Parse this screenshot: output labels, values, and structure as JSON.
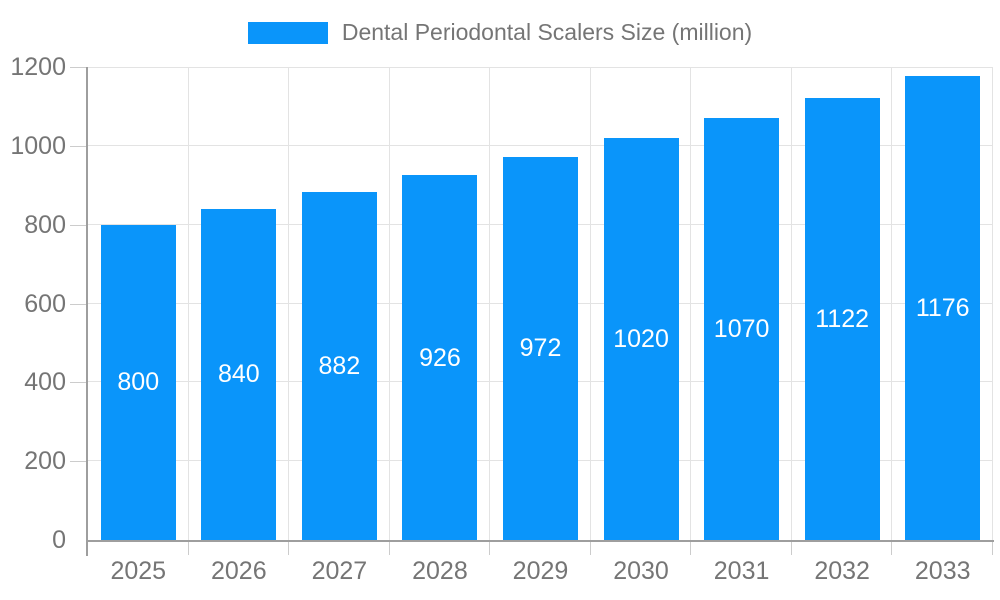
{
  "chart_data": {
    "type": "bar",
    "title": "Dental Periodontal Scalers Size (million)",
    "legend": {
      "label": "Dental Periodontal Scalers Size (million)",
      "position": "top"
    },
    "categories": [
      "2025",
      "2026",
      "2027",
      "2028",
      "2029",
      "2030",
      "2031",
      "2032",
      "2033"
    ],
    "values": [
      800,
      840,
      882,
      926,
      972,
      1020,
      1070,
      1122,
      1176
    ],
    "xlabel": "",
    "ylabel": "",
    "ylim": [
      0,
      1200
    ],
    "yticks": [
      0,
      200,
      400,
      600,
      800,
      1000,
      1200
    ],
    "grid": true,
    "bar_value_labels_visible": true,
    "colors": {
      "bar": "#0a95fa",
      "bar_label_text": "#ffffff",
      "axis_text": "#757575",
      "grid_line": "#e3e3e3",
      "tick_line": "#cccccc",
      "axis_line": "#9e9e9e",
      "background": "#ffffff"
    }
  }
}
